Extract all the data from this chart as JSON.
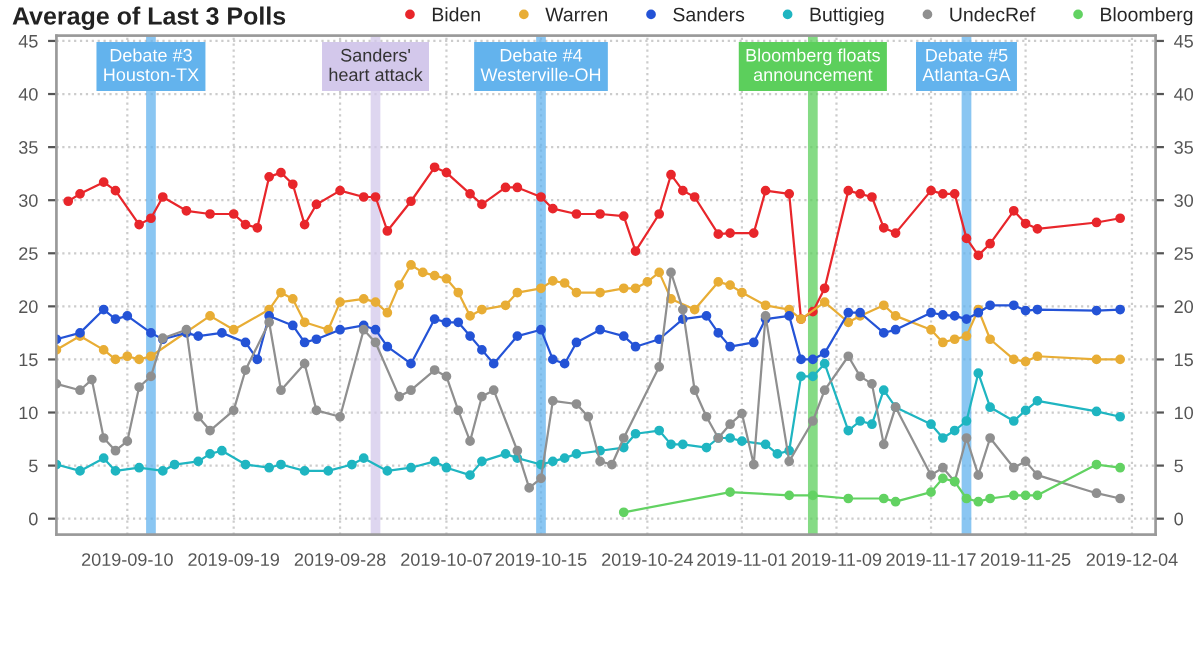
{
  "chart_data": {
    "type": "line",
    "title": "Average of Last 3 Polls",
    "marker": "circle",
    "line_style": "solid",
    "grid": true,
    "legend": "top",
    "xlim": [
      "2019-09-04",
      "2019-12-06"
    ],
    "xticks": [
      "2019-09-10",
      "2019-09-19",
      "2019-09-28",
      "2019-10-07",
      "2019-10-15",
      "2019-10-24",
      "2019-11-01",
      "2019-11-09",
      "2019-11-17",
      "2019-11-25",
      "2019-12-04"
    ],
    "ylim": [
      -1.5,
      45.5
    ],
    "yticks": [
      0,
      5,
      10,
      15,
      20,
      25,
      30,
      35,
      40,
      45
    ],
    "y2lim": [
      -1.5,
      45.5
    ],
    "y2ticks": [
      0,
      5,
      10,
      15,
      20,
      25,
      30,
      35,
      40,
      45
    ],
    "ref_lines": [
      {
        "axis": "x",
        "value": "2019-09-12",
        "label": "Debate #3 Houston-TX",
        "color": "#63b3ed"
      },
      {
        "axis": "x",
        "value": "2019-10-01",
        "label": "Sanders' heart attack",
        "color": "#d3c8eb"
      },
      {
        "axis": "x",
        "value": "2019-10-15",
        "label": "Debate #4 Westerville-OH",
        "color": "#63b3ed"
      },
      {
        "axis": "x",
        "value": "2019-11-07",
        "label": "Bloomberg floats announcement",
        "color": "#5ccf5c"
      },
      {
        "axis": "x",
        "value": "2019-11-20",
        "label": "Debate #5 Atlanta-GA",
        "color": "#63b3ed"
      }
    ],
    "series": [
      {
        "name": "Biden",
        "color": "#e8262b",
        "x": [
          "2019-09-05",
          "2019-09-06",
          "2019-09-08",
          "2019-09-09",
          "2019-09-11",
          "2019-09-12",
          "2019-09-13",
          "2019-09-15",
          "2019-09-17",
          "2019-09-19",
          "2019-09-20",
          "2019-09-21",
          "2019-09-22",
          "2019-09-23",
          "2019-09-24",
          "2019-09-25",
          "2019-09-26",
          "2019-09-28",
          "2019-09-30",
          "2019-10-01",
          "2019-10-02",
          "2019-10-04",
          "2019-10-06",
          "2019-10-07",
          "2019-10-09",
          "2019-10-10",
          "2019-10-12",
          "2019-10-13",
          "2019-10-15",
          "2019-10-16",
          "2019-10-18",
          "2019-10-20",
          "2019-10-22",
          "2019-10-23",
          "2019-10-25",
          "2019-10-26",
          "2019-10-27",
          "2019-10-28",
          "2019-10-30",
          "2019-10-31",
          "2019-11-02",
          "2019-11-03",
          "2019-11-05",
          "2019-11-06",
          "2019-11-07",
          "2019-11-08",
          "2019-11-10",
          "2019-11-11",
          "2019-11-12",
          "2019-11-13",
          "2019-11-14",
          "2019-11-17",
          "2019-11-18",
          "2019-11-19",
          "2019-11-20",
          "2019-11-21",
          "2019-11-22",
          "2019-11-24",
          "2019-11-25",
          "2019-11-26",
          "2019-12-01",
          "2019-12-03"
        ],
        "values": [
          29.9,
          30.6,
          31.7,
          30.9,
          27.7,
          28.3,
          30.3,
          29,
          28.7,
          28.7,
          27.7,
          27.4,
          32.2,
          32.6,
          31.5,
          27.7,
          29.6,
          30.9,
          30.3,
          30.3,
          27.1,
          29.9,
          33.1,
          32.6,
          30.6,
          29.6,
          31.2,
          31.2,
          30.3,
          29.2,
          28.7,
          28.7,
          28.5,
          25.2,
          28.7,
          32.4,
          30.9,
          30.3,
          26.8,
          26.9,
          26.9,
          30.9,
          30.6,
          18.8,
          19.5,
          21.7,
          30.9,
          30.6,
          30.3,
          27.4,
          26.9,
          30.9,
          30.6,
          30.6,
          26.4,
          24.8,
          25.9,
          29,
          27.8,
          27.3,
          27.9,
          28.3
        ]
      },
      {
        "name": "Warren",
        "color": "#e8ad35",
        "x": [
          "2019-09-04",
          "2019-09-06",
          "2019-09-08",
          "2019-09-09",
          "2019-09-10",
          "2019-09-11",
          "2019-09-12",
          "2019-09-17",
          "2019-09-19",
          "2019-09-22",
          "2019-09-23",
          "2019-09-24",
          "2019-09-25",
          "2019-09-27",
          "2019-09-28",
          "2019-09-30",
          "2019-10-01",
          "2019-10-02",
          "2019-10-03",
          "2019-10-04",
          "2019-10-05",
          "2019-10-06",
          "2019-10-07",
          "2019-10-08",
          "2019-10-09",
          "2019-10-10",
          "2019-10-12",
          "2019-10-13",
          "2019-10-15",
          "2019-10-16",
          "2019-10-17",
          "2019-10-18",
          "2019-10-20",
          "2019-10-22",
          "2019-10-23",
          "2019-10-24",
          "2019-10-25",
          "2019-10-26",
          "2019-10-28",
          "2019-10-30",
          "2019-10-31",
          "2019-11-01",
          "2019-11-03",
          "2019-11-05",
          "2019-11-06",
          "2019-11-08",
          "2019-11-10",
          "2019-11-11",
          "2019-11-13",
          "2019-11-14",
          "2019-11-17",
          "2019-11-18",
          "2019-11-19",
          "2019-11-20",
          "2019-11-21",
          "2019-11-22",
          "2019-11-24",
          "2019-11-25",
          "2019-11-26",
          "2019-12-01",
          "2019-12-03"
        ],
        "values": [
          15.9,
          17.2,
          15.9,
          15,
          15.3,
          15,
          15.3,
          19.1,
          17.8,
          19.7,
          21.3,
          20.7,
          18.5,
          17.8,
          20.4,
          20.7,
          20.4,
          19.4,
          22,
          23.9,
          23.2,
          22.9,
          22.6,
          21.3,
          19.1,
          19.7,
          20.1,
          21.3,
          21.7,
          22.4,
          22.2,
          21.3,
          21.3,
          21.7,
          21.7,
          22.3,
          23.2,
          20.7,
          19.7,
          22.3,
          22,
          21.3,
          20.1,
          19.7,
          18.8,
          20.4,
          18.5,
          19.1,
          20.1,
          19.1,
          17.8,
          16.6,
          16.9,
          17.2,
          19.7,
          16.9,
          15,
          14.8,
          15.3,
          15,
          15
        ]
      },
      {
        "name": "Sanders",
        "color": "#2453d6",
        "x": [
          "2019-09-04",
          "2019-09-06",
          "2019-09-08",
          "2019-09-09",
          "2019-09-10",
          "2019-09-12",
          "2019-09-13",
          "2019-09-15",
          "2019-09-16",
          "2019-09-18",
          "2019-09-20",
          "2019-09-21",
          "2019-09-22",
          "2019-09-24",
          "2019-09-25",
          "2019-09-26",
          "2019-09-28",
          "2019-09-30",
          "2019-10-01",
          "2019-10-02",
          "2019-10-04",
          "2019-10-06",
          "2019-10-07",
          "2019-10-08",
          "2019-10-09",
          "2019-10-10",
          "2019-10-11",
          "2019-10-13",
          "2019-10-15",
          "2019-10-16",
          "2019-10-17",
          "2019-10-18",
          "2019-10-20",
          "2019-10-22",
          "2019-10-23",
          "2019-10-25",
          "2019-10-27",
          "2019-10-29",
          "2019-10-30",
          "2019-10-31",
          "2019-11-02",
          "2019-11-03",
          "2019-11-05",
          "2019-11-06",
          "2019-11-07",
          "2019-11-08",
          "2019-11-10",
          "2019-11-11",
          "2019-11-13",
          "2019-11-14",
          "2019-11-17",
          "2019-11-18",
          "2019-11-19",
          "2019-11-20",
          "2019-11-21",
          "2019-11-22",
          "2019-11-24",
          "2019-11-25",
          "2019-11-26",
          "2019-12-01",
          "2019-12-03"
        ],
        "values": [
          16.9,
          17.5,
          19.7,
          18.8,
          19.1,
          17.5,
          16.9,
          17.5,
          17.2,
          17.5,
          16.6,
          15,
          19.1,
          18.2,
          16.6,
          16.9,
          17.8,
          18.2,
          17.8,
          16.2,
          14.6,
          18.8,
          18.5,
          18.5,
          17.2,
          15.9,
          14.6,
          17.2,
          17.8,
          15,
          14.6,
          16.6,
          17.8,
          17.2,
          16.2,
          16.9,
          18.8,
          19.1,
          17.5,
          16.2,
          16.6,
          18.8,
          19.1,
          15,
          15,
          15.6,
          19.4,
          19.4,
          17.5,
          17.8,
          19.4,
          19.2,
          19.1,
          18.8,
          19.4,
          20.1,
          20.1,
          19.6,
          19.7,
          19.6,
          19.7
        ]
      },
      {
        "name": "Buttigieg",
        "color": "#1fb5c1",
        "x": [
          "2019-09-04",
          "2019-09-06",
          "2019-09-08",
          "2019-09-09",
          "2019-09-11",
          "2019-09-13",
          "2019-09-14",
          "2019-09-16",
          "2019-09-17",
          "2019-09-18",
          "2019-09-20",
          "2019-09-22",
          "2019-09-23",
          "2019-09-25",
          "2019-09-27",
          "2019-09-29",
          "2019-09-30",
          "2019-10-02",
          "2019-10-04",
          "2019-10-06",
          "2019-10-07",
          "2019-10-09",
          "2019-10-10",
          "2019-10-12",
          "2019-10-13",
          "2019-10-15",
          "2019-10-16",
          "2019-10-17",
          "2019-10-18",
          "2019-10-20",
          "2019-10-22",
          "2019-10-23",
          "2019-10-25",
          "2019-10-26",
          "2019-10-27",
          "2019-10-29",
          "2019-10-30",
          "2019-10-31",
          "2019-11-01",
          "2019-11-03",
          "2019-11-04",
          "2019-11-05",
          "2019-11-06",
          "2019-11-07",
          "2019-11-08",
          "2019-11-10",
          "2019-11-11",
          "2019-11-12",
          "2019-11-13",
          "2019-11-14",
          "2019-11-17",
          "2019-11-18",
          "2019-11-19",
          "2019-11-20",
          "2019-11-21",
          "2019-11-22",
          "2019-11-24",
          "2019-11-25",
          "2019-11-26",
          "2019-12-01",
          "2019-12-03"
        ],
        "values": [
          5.1,
          4.5,
          5.7,
          4.5,
          4.8,
          4.5,
          5.1,
          5.4,
          6.1,
          6.4,
          5.1,
          4.8,
          5.1,
          4.5,
          4.5,
          5.1,
          5.7,
          4.5,
          4.8,
          5.4,
          4.8,
          4.1,
          5.4,
          6.1,
          5.7,
          5.1,
          5.4,
          5.7,
          6.1,
          6.4,
          6.7,
          8,
          8.3,
          7,
          7,
          6.7,
          7.6,
          7.6,
          7.3,
          7,
          6.1,
          6.4,
          13.4,
          13.4,
          14.6,
          8.3,
          9.2,
          8.9,
          12.1,
          10.5,
          8.9,
          7.6,
          8.3,
          9.2,
          13.7,
          10.5,
          9.2,
          10.2,
          11.1,
          10.1,
          9.6
        ]
      },
      {
        "name": "UndecRef",
        "color": "#8f8f8f",
        "x": [
          "2019-09-04",
          "2019-09-06",
          "2019-09-07",
          "2019-09-08",
          "2019-09-09",
          "2019-09-10",
          "2019-09-11",
          "2019-09-12",
          "2019-09-13",
          "2019-09-15",
          "2019-09-16",
          "2019-09-17",
          "2019-09-19",
          "2019-09-20",
          "2019-09-22",
          "2019-09-23",
          "2019-09-25",
          "2019-09-26",
          "2019-09-28",
          "2019-09-30",
          "2019-10-01",
          "2019-10-03",
          "2019-10-04",
          "2019-10-06",
          "2019-10-07",
          "2019-10-08",
          "2019-10-09",
          "2019-10-10",
          "2019-10-11",
          "2019-10-13",
          "2019-10-14",
          "2019-10-15",
          "2019-10-16",
          "2019-10-18",
          "2019-10-19",
          "2019-10-20",
          "2019-10-21",
          "2019-10-22",
          "2019-10-25",
          "2019-10-26",
          "2019-10-27",
          "2019-10-28",
          "2019-10-29",
          "2019-10-30",
          "2019-10-31",
          "2019-11-01",
          "2019-11-02",
          "2019-11-03",
          "2019-11-05",
          "2019-11-07",
          "2019-11-08",
          "2019-11-10",
          "2019-11-11",
          "2019-11-12",
          "2019-11-13",
          "2019-11-14",
          "2019-11-17",
          "2019-11-18",
          "2019-11-19",
          "2019-11-20",
          "2019-11-21",
          "2019-11-22",
          "2019-11-24",
          "2019-11-25",
          "2019-11-26",
          "2019-12-01",
          "2019-12-03"
        ],
        "values": [
          12.7,
          12.1,
          13.1,
          7.6,
          6.4,
          7.3,
          12.4,
          13.4,
          17,
          17.8,
          9.6,
          8.3,
          10.2,
          14,
          18.5,
          12.1,
          14.6,
          10.2,
          9.6,
          17.8,
          16.6,
          11.5,
          12.1,
          14,
          13.4,
          10.2,
          7.3,
          11.5,
          12.1,
          6.4,
          2.9,
          3.8,
          11.1,
          10.8,
          9.6,
          5.4,
          5.1,
          7.6,
          14.3,
          23.2,
          19.7,
          12.1,
          9.6,
          7.6,
          8.9,
          9.9,
          5.1,
          19.1,
          5.4,
          9.2,
          12.1,
          15.3,
          13.4,
          12.7,
          7,
          10.5,
          4.1,
          4.8,
          3.5,
          7.6,
          4.1,
          7.6,
          4.8,
          5.4,
          4.1,
          2.4,
          1.9
        ]
      },
      {
        "name": "Bloomberg",
        "color": "#62d262",
        "x": [
          "2019-10-22",
          "2019-10-31",
          "2019-11-05",
          "2019-11-07",
          "2019-11-10",
          "2019-11-13",
          "2019-11-14",
          "2019-11-17",
          "2019-11-18",
          "2019-11-19",
          "2019-11-20",
          "2019-11-21",
          "2019-11-22",
          "2019-11-24",
          "2019-11-25",
          "2019-11-26",
          "2019-12-01",
          "2019-12-03"
        ],
        "values": [
          0.6,
          2.5,
          2.2,
          2.2,
          1.9,
          1.9,
          1.6,
          2.5,
          3.8,
          3.5,
          1.9,
          1.6,
          1.9,
          2.2,
          2.2,
          2.2,
          5.1,
          4.8
        ]
      }
    ]
  }
}
